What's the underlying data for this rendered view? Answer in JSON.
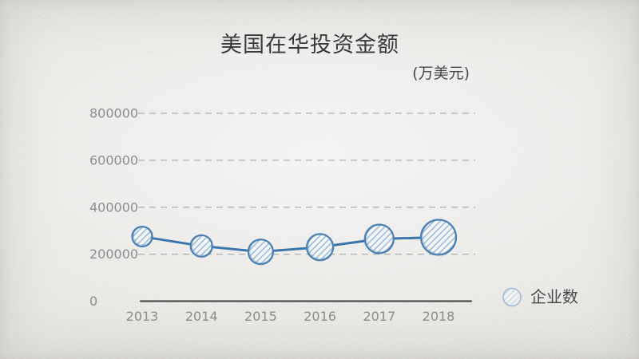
{
  "chart": {
    "title": "美国在华投资金额",
    "unit_label": "(万美元)",
    "legend_label": "企业数"
  },
  "chart_data": {
    "type": "line",
    "style": "hand-drawn line with size-encoded bubble markers",
    "title": "美国在华投资金额",
    "unit": "万美元",
    "categories": [
      "2013",
      "2014",
      "2015",
      "2016",
      "2017",
      "2018"
    ],
    "series": [
      {
        "name": "美国在华投资金额",
        "values": [
          275000,
          235000,
          210000,
          230000,
          265000,
          272000
        ]
      }
    ],
    "bubble_radius_px": [
      12.5,
      13.5,
      15.5,
      16.5,
      18,
      22
    ],
    "legend": [
      "企业数"
    ],
    "legend_position": "bottom-right",
    "xlabel": "",
    "ylabel": "",
    "ylim": [
      0,
      800000
    ],
    "yticks": [
      0,
      200000,
      400000,
      600000,
      800000
    ],
    "ytick_labels": [
      "0",
      "200000",
      "400000",
      "600000",
      "800000"
    ],
    "grid": "horizontal-dashed",
    "colors": {
      "line": "#3c76ae",
      "bubble_stroke": "#4a7fb2",
      "bubble_hatch": "#9dbedd",
      "bubble_fill": "#f7f8f7",
      "grid": "#a0a0a0",
      "axis": "#3c3c3c",
      "tick_text": "#8d8d8d",
      "title_text": "#3a3a3a",
      "legend_text": "#4a4a4a",
      "background": "#eae9e6"
    }
  }
}
